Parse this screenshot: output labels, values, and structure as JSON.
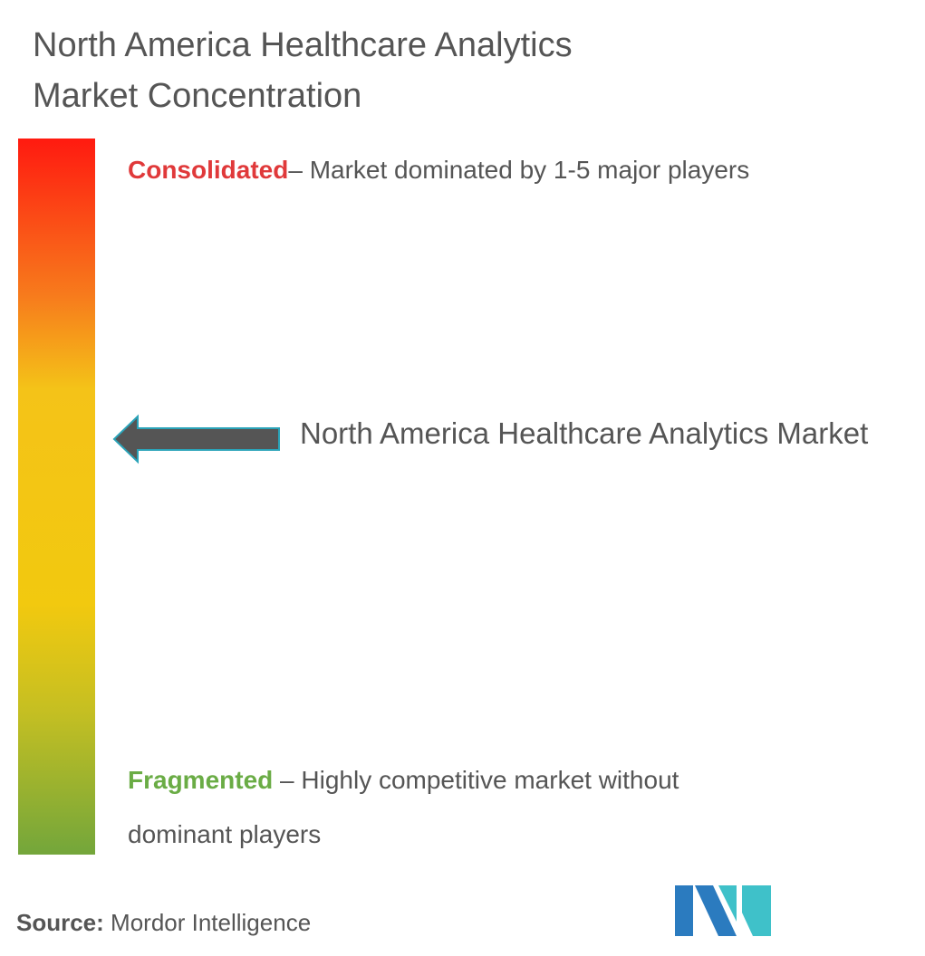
{
  "title": "North America Healthcare Analytics Market Concentration",
  "consolidated": {
    "label": "Consolidated",
    "text": "– Market dominated by 1-5 major players"
  },
  "fragmented": {
    "label": "Fragmented",
    "text": " – Highly competitive market without dominant players"
  },
  "marker": {
    "label": "North America Healthcare Analytics Market"
  },
  "source": {
    "label": "Source:",
    "text": " Mordor Intelligence"
  }
}
